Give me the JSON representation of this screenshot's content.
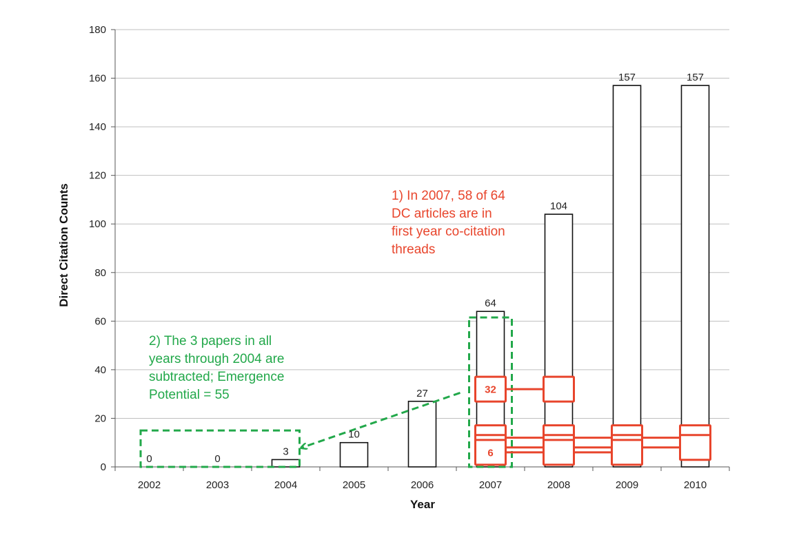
{
  "chart_data": {
    "type": "bar",
    "title": "",
    "xlabel": "Year",
    "ylabel": "Direct Citation Counts",
    "ylim": [
      0,
      180
    ],
    "yticks": [
      0,
      20,
      40,
      60,
      80,
      100,
      120,
      140,
      160,
      180
    ],
    "grid": true,
    "categories": [
      "2002",
      "2003",
      "2004",
      "2005",
      "2006",
      "2007",
      "2008",
      "2009",
      "2010"
    ],
    "values": [
      0,
      0,
      3,
      10,
      27,
      64,
      104,
      157,
      157
    ],
    "data_labels": [
      "0",
      "0",
      "3",
      "10",
      "27",
      "64",
      "104",
      "157",
      "157"
    ],
    "threads": [
      {
        "label": "32",
        "value": 32,
        "years": [
          "2007",
          "2008"
        ]
      },
      {
        "label": "12",
        "value": 12,
        "years": [
          "2007",
          "2008",
          "2009",
          "2010"
        ]
      },
      {
        "label": "8",
        "value": 8,
        "years": [
          "2007",
          "2008",
          "2009",
          "2010"
        ]
      },
      {
        "label": "6",
        "value": 6,
        "years": [
          "2007",
          "2008",
          "2009"
        ]
      }
    ],
    "annotations": [
      {
        "id": "note-2007",
        "color": "#e8452c",
        "lines": [
          "1) In 2007, 58 of 64",
          "DC articles are in",
          "first year co-citation",
          "threads"
        ]
      },
      {
        "id": "note-emergence",
        "color": "#22a84a",
        "lines": [
          "2) The 3 papers in all",
          "years through 2004 are",
          "subtracted; Emergence",
          "Potential = 55"
        ]
      }
    ],
    "colors": {
      "bar_stroke": "#111111",
      "thread": "#e8452c",
      "emergence": "#22a84a",
      "grid": "#bfbfbf"
    }
  }
}
